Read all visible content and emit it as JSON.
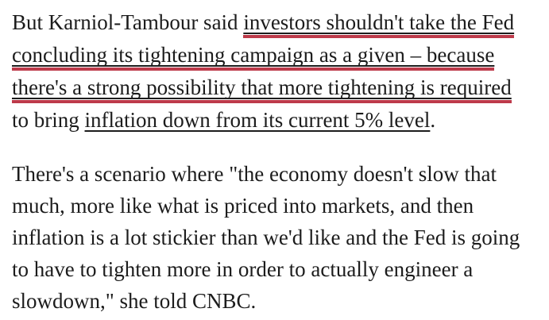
{
  "page": {
    "background_color": "#ffffff",
    "text_color": "#1c1c1c"
  },
  "annotation": {
    "shape": "red-underline",
    "color": "#bd3a4a",
    "applies_to": "link-fed-tightening"
  },
  "article": {
    "paragraph1": {
      "segments": [
        {
          "text": "But Karniol-Tambour said ",
          "style": "plain"
        },
        {
          "text": "investors shouldn't take the Fed concluding its tightening campaign as a given – because there's a strong possibility that more tightening is required",
          "style": "link-red-underlined"
        },
        {
          "text": " to bring ",
          "style": "plain"
        },
        {
          "text": "inflation down from its current 5% level",
          "style": "link"
        },
        {
          "text": ".",
          "style": "plain"
        }
      ]
    },
    "paragraph2": {
      "text": "There's a scenario where \"the economy doesn't slow that much, more like what is priced into markets, and then inflation is a lot stickier than we'd like and the Fed is going to have to tighten more in order to actually engineer a slowdown,\" she told CNBC."
    }
  }
}
